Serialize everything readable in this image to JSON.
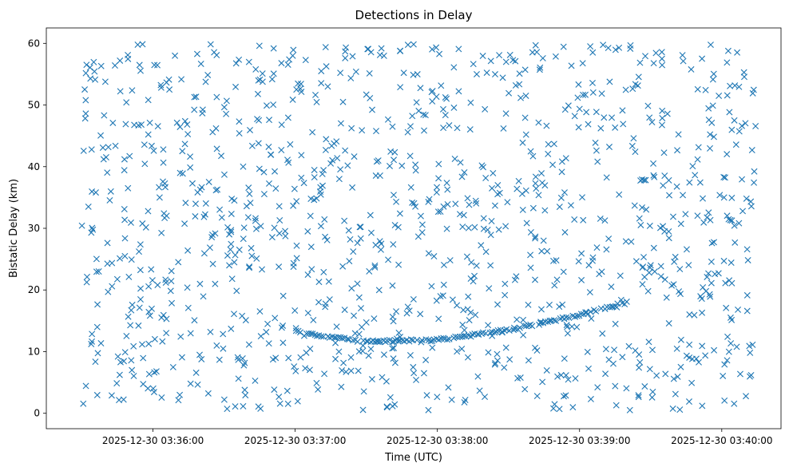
{
  "chart_data": {
    "type": "scatter",
    "title": "Detections in Delay",
    "xlabel": "Time (UTC)",
    "ylabel": "Bistatic Delay (km)",
    "marker": "x",
    "color": "#1f77b4",
    "grid": false,
    "xlim": [
      "2025-12-30 03:35:15",
      "2025-12-30 03:40:25"
    ],
    "ylim": [
      -2.5,
      62.5
    ],
    "x_ticks": [
      "2025-12-30 03:36:00",
      "2025-12-30 03:37:00",
      "2025-12-30 03:38:00",
      "2025-12-30 03:39:00",
      "2025-12-30 03:40:00"
    ],
    "y_ticks": [
      0,
      10,
      20,
      30,
      40,
      50,
      60
    ],
    "time_range": [
      "2025-12-30 03:35:30",
      "2025-12-30 03:40:15"
    ],
    "delay_range": [
      0.5,
      60
    ],
    "noise_point_count": 1150,
    "track": {
      "description": "dense track of detections",
      "points": [
        [
          "2025-12-30 03:37:00",
          13.2
        ],
        [
          "2025-12-30 03:37:30",
          11.6
        ],
        [
          "2025-12-30 03:38:00",
          11.9
        ],
        [
          "2025-12-30 03:38:30",
          13.5
        ],
        [
          "2025-12-30 03:39:00",
          16.0
        ],
        [
          "2025-12-30 03:39:20",
          18.0
        ]
      ]
    }
  }
}
